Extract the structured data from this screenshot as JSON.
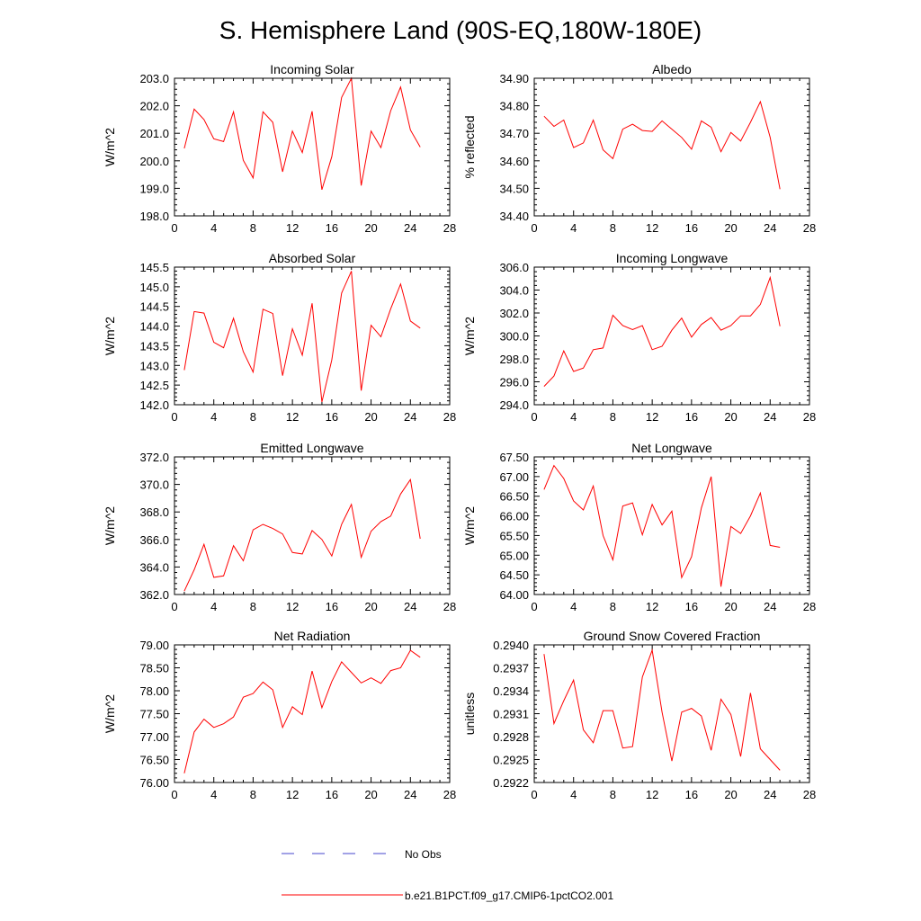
{
  "figure_title": "S. Hemisphere Land (90S-EQ,180W-180E)",
  "legend": [
    {
      "label": "No Obs",
      "color": "#4444cc",
      "style": "dashed"
    },
    {
      "label": "b.e21.B1PCT.f09_g17.CMIP6-1pctCO2.001",
      "color": "#ff0000",
      "style": "solid"
    }
  ],
  "chart_data": [
    {
      "type": "line",
      "title": "Incoming Solar",
      "xlabel": "",
      "ylabel": "W/m^2",
      "xlim": [
        0,
        28
      ],
      "ylim": [
        198.0,
        203.0
      ],
      "xticks": [
        "0",
        "4",
        "8",
        "12",
        "16",
        "20",
        "24",
        "28"
      ],
      "yticks": [
        "198.0",
        "199.0",
        "200.0",
        "201.0",
        "202.0",
        "203.0"
      ],
      "color": "#ff0000",
      "x": [
        1,
        2,
        3,
        4,
        5,
        6,
        7,
        8,
        9,
        10,
        11,
        12,
        13,
        14,
        15,
        16,
        17,
        18,
        19,
        20,
        21,
        22,
        23,
        24,
        25
      ],
      "y": [
        200.45,
        201.88,
        201.5,
        200.8,
        200.7,
        201.78,
        200.02,
        199.38,
        201.78,
        201.4,
        199.6,
        201.08,
        200.3,
        201.8,
        198.95,
        200.15,
        202.3,
        203.0,
        199.1,
        201.08,
        200.48,
        201.82,
        202.68,
        201.12,
        200.5
      ]
    },
    {
      "type": "line",
      "title": "Albedo",
      "xlabel": "",
      "ylabel": "% reflected",
      "xlim": [
        0,
        28
      ],
      "ylim": [
        34.4,
        34.9
      ],
      "xticks": [
        "0",
        "4",
        "8",
        "12",
        "16",
        "20",
        "24",
        "28"
      ],
      "yticks": [
        "34.40",
        "34.50",
        "34.60",
        "34.70",
        "34.80",
        "34.90"
      ],
      "color": "#ff0000",
      "x": [
        1,
        2,
        3,
        4,
        5,
        6,
        7,
        8,
        9,
        10,
        11,
        12,
        13,
        14,
        15,
        16,
        17,
        18,
        19,
        20,
        21,
        22,
        23,
        24,
        25
      ],
      "y": [
        34.762,
        34.725,
        34.748,
        34.648,
        34.665,
        34.748,
        34.64,
        34.608,
        34.715,
        34.733,
        34.71,
        34.707,
        34.745,
        34.715,
        34.685,
        34.642,
        34.745,
        34.722,
        34.633,
        34.703,
        34.672,
        34.74,
        34.815,
        34.685,
        34.497
      ]
    },
    {
      "type": "line",
      "title": "Absorbed Solar",
      "xlabel": "",
      "ylabel": "W/m^2",
      "xlim": [
        0,
        28
      ],
      "ylim": [
        142.0,
        145.5
      ],
      "xticks": [
        "0",
        "4",
        "8",
        "12",
        "16",
        "20",
        "24",
        "28"
      ],
      "yticks": [
        "142.0",
        "142.5",
        "143.0",
        "143.5",
        "144.0",
        "144.5",
        "145.0",
        "145.5"
      ],
      "color": "#ff0000",
      "x": [
        1,
        2,
        3,
        4,
        5,
        6,
        7,
        8,
        9,
        10,
        11,
        12,
        13,
        14,
        15,
        16,
        17,
        18,
        19,
        20,
        21,
        22,
        23,
        24,
        25
      ],
      "y": [
        142.88,
        144.37,
        144.33,
        143.59,
        143.45,
        144.2,
        143.35,
        142.83,
        144.43,
        144.32,
        142.74,
        143.93,
        143.26,
        144.58,
        142.07,
        143.14,
        144.84,
        145.4,
        142.36,
        144.02,
        143.73,
        144.44,
        145.07,
        144.13,
        143.95
      ]
    },
    {
      "type": "line",
      "title": "Incoming Longwave",
      "xlabel": "",
      "ylabel": "W/m^2",
      "xlim": [
        0,
        28
      ],
      "ylim": [
        294.0,
        306.0
      ],
      "xticks": [
        "0",
        "4",
        "8",
        "12",
        "16",
        "20",
        "24",
        "28"
      ],
      "yticks": [
        "294.0",
        "296.0",
        "298.0",
        "300.0",
        "302.0",
        "304.0",
        "306.0"
      ],
      "color": "#ff0000",
      "x": [
        1,
        2,
        3,
        4,
        5,
        6,
        7,
        8,
        9,
        10,
        11,
        12,
        13,
        14,
        15,
        16,
        17,
        18,
        19,
        20,
        21,
        22,
        23,
        24,
        25
      ],
      "y": [
        295.6,
        296.5,
        298.7,
        296.9,
        297.2,
        298.8,
        298.95,
        301.8,
        300.9,
        300.55,
        300.9,
        298.8,
        299.1,
        300.5,
        301.55,
        299.9,
        301.0,
        301.6,
        300.5,
        300.9,
        301.75,
        301.75,
        302.75,
        305.1,
        300.85
      ]
    },
    {
      "type": "line",
      "title": "Emitted Longwave",
      "xlabel": "",
      "ylabel": "W/m^2",
      "xlim": [
        0,
        28
      ],
      "ylim": [
        362.0,
        372.0
      ],
      "xticks": [
        "0",
        "4",
        "8",
        "12",
        "16",
        "20",
        "24",
        "28"
      ],
      "yticks": [
        "362.0",
        "364.0",
        "366.0",
        "368.0",
        "370.0",
        "372.0"
      ],
      "color": "#ff0000",
      "x": [
        1,
        2,
        3,
        4,
        5,
        6,
        7,
        8,
        9,
        10,
        11,
        12,
        13,
        14,
        15,
        16,
        17,
        18,
        19,
        20,
        21,
        22,
        23,
        24,
        25
      ],
      "y": [
        362.25,
        363.8,
        365.65,
        363.25,
        363.35,
        365.55,
        364.45,
        366.7,
        367.1,
        366.8,
        366.4,
        365.05,
        364.95,
        366.65,
        366.0,
        364.8,
        367.1,
        368.55,
        364.7,
        366.6,
        367.3,
        367.7,
        369.3,
        370.35,
        366.05
      ]
    },
    {
      "type": "line",
      "title": "Net Longwave",
      "xlabel": "",
      "ylabel": "W/m^2",
      "xlim": [
        0,
        28
      ],
      "ylim": [
        64.0,
        67.5
      ],
      "xticks": [
        "0",
        "4",
        "8",
        "12",
        "16",
        "20",
        "24",
        "28"
      ],
      "yticks": [
        "64.00",
        "64.50",
        "65.00",
        "65.50",
        "66.00",
        "66.50",
        "67.00",
        "67.50"
      ],
      "color": "#ff0000",
      "x": [
        1,
        2,
        3,
        4,
        5,
        6,
        7,
        8,
        9,
        10,
        11,
        12,
        13,
        14,
        15,
        16,
        17,
        18,
        19,
        20,
        21,
        22,
        23,
        24,
        25
      ],
      "y": [
        66.67,
        67.28,
        66.95,
        66.38,
        66.15,
        66.76,
        65.5,
        64.88,
        66.25,
        66.33,
        65.52,
        66.29,
        65.77,
        66.12,
        64.43,
        64.96,
        66.2,
        67.0,
        64.2,
        65.73,
        65.55,
        66.0,
        66.58,
        65.25,
        65.2
      ]
    },
    {
      "type": "line",
      "title": "Net Radiation",
      "xlabel": "",
      "ylabel": "W/m^2",
      "xlim": [
        0,
        28
      ],
      "ylim": [
        76.0,
        79.0
      ],
      "xticks": [
        "0",
        "4",
        "8",
        "12",
        "16",
        "20",
        "24",
        "28"
      ],
      "yticks": [
        "76.00",
        "76.50",
        "77.00",
        "77.50",
        "78.00",
        "78.50",
        "79.00"
      ],
      "color": "#ff0000",
      "x": [
        1,
        2,
        3,
        4,
        5,
        6,
        7,
        8,
        9,
        10,
        11,
        12,
        13,
        14,
        15,
        16,
        17,
        18,
        19,
        20,
        21,
        22,
        23,
        24,
        25
      ],
      "y": [
        76.2,
        77.1,
        77.38,
        77.2,
        77.28,
        77.43,
        77.86,
        77.94,
        78.19,
        78.02,
        77.2,
        77.65,
        77.48,
        78.43,
        77.63,
        78.2,
        78.63,
        78.4,
        78.17,
        78.28,
        78.16,
        78.44,
        78.5,
        78.88,
        78.73
      ]
    },
    {
      "type": "line",
      "title": "Ground Snow Covered Fraction",
      "xlabel": "",
      "ylabel": "unitless",
      "xlim": [
        0,
        28
      ],
      "ylim": [
        0.2922,
        0.294
      ],
      "xticks": [
        "0",
        "4",
        "8",
        "12",
        "16",
        "20",
        "24",
        "28"
      ],
      "yticks": [
        "0.2922",
        "0.2925",
        "0.2928",
        "0.2931",
        "0.2934",
        "0.2937",
        "0.2940"
      ],
      "color": "#ff0000",
      "x": [
        1,
        2,
        3,
        4,
        5,
        6,
        7,
        8,
        9,
        10,
        11,
        12,
        13,
        14,
        15,
        16,
        17,
        18,
        19,
        20,
        21,
        22,
        23,
        24,
        25
      ],
      "y": [
        0.29388,
        0.29297,
        0.29327,
        0.29354,
        0.29289,
        0.29272,
        0.29314,
        0.29314,
        0.29265,
        0.29267,
        0.29358,
        0.29393,
        0.29312,
        0.29248,
        0.29312,
        0.29317,
        0.29307,
        0.29262,
        0.29329,
        0.29309,
        0.29254,
        0.29337,
        0.29264,
        0.2925,
        0.29236
      ]
    }
  ]
}
